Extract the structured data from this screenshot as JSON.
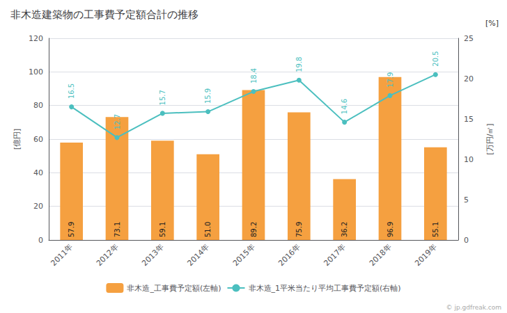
{
  "chart_data": {
    "type": "bar",
    "title": "非木造建築物の工事費予定額合計の推移",
    "categories": [
      "2011年",
      "2012年",
      "2013年",
      "2014年",
      "2015年",
      "2016年",
      "2017年",
      "2018年",
      "2019年"
    ],
    "series": [
      {
        "name": "非木造_工事費予定額(左軸)",
        "type": "bar",
        "color": "#f5a040",
        "values": [
          57.9,
          73.1,
          59.1,
          51.0,
          89.2,
          75.9,
          36.2,
          96.9,
          55.1
        ],
        "value_labels": [
          "57.9",
          "73.1",
          "59.1",
          "51.0",
          "89.2",
          "75.9",
          "36.2",
          "96.9",
          "55.1"
        ],
        "data_labels": true
      },
      {
        "name": "非木造_1平米当たり平均工事費予定額(右軸)",
        "type": "line",
        "color": "#4bbfbf",
        "axis": "y2",
        "marker": "circle",
        "values": [
          16.5,
          12.7,
          15.7,
          15.9,
          18.4,
          19.8,
          14.6,
          17.9,
          20.5
        ],
        "data_labels": true
      }
    ],
    "ylabel": "[億円]",
    "y2label": "[万円/㎡]",
    "ylim": [
      0,
      120
    ],
    "yticks": [
      0,
      20,
      40,
      60,
      80,
      100,
      120
    ],
    "y2lim": [
      0,
      25.0
    ],
    "y2ticks": [
      0,
      5,
      10,
      15,
      20,
      25
    ],
    "annotations": [
      "[%]",
      "© jp.gdfreak.com"
    ],
    "grid": true,
    "legend": "bottom"
  }
}
